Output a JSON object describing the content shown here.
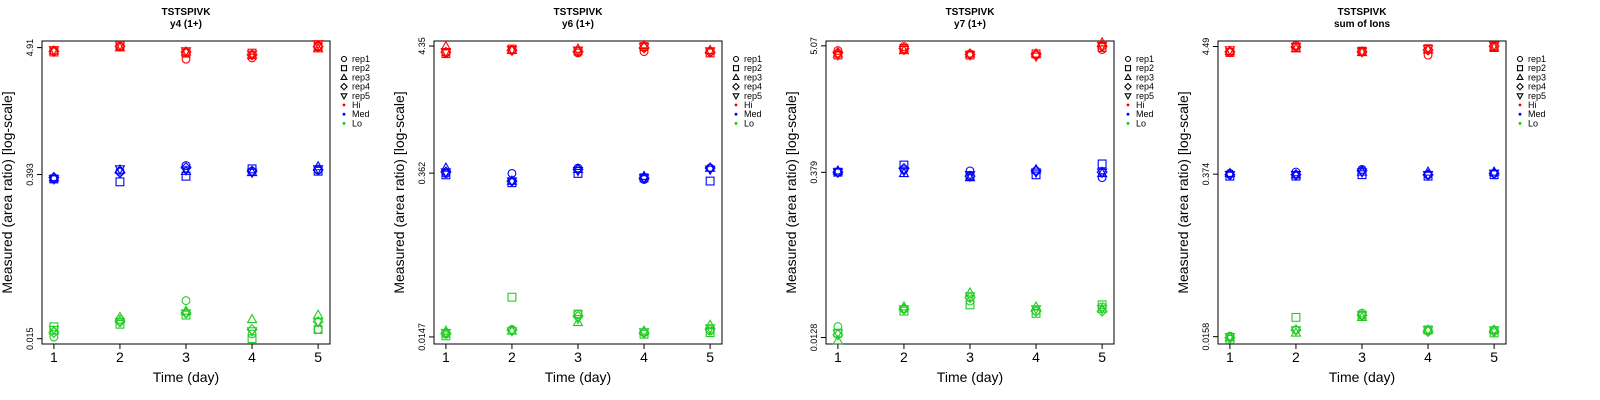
{
  "chart_data": [
    {
      "type": "scatter",
      "title": "TSTSPIVK",
      "subtitle": "y4 (1+)",
      "xlabel": "Time (day)",
      "ylabel": "Measured (area ratio) [log-scale]",
      "yscale": "log",
      "x": [
        1,
        2,
        3,
        4,
        5
      ],
      "yticks": [
        0.015,
        0.393,
        4.91
      ],
      "ytick_labels": [
        "0.015",
        "0.393",
        "4.91"
      ],
      "ylim": [
        0.0135,
        5.6
      ],
      "grid": false,
      "legend_position": "right",
      "series": [
        {
          "name": "rep1",
          "level": "Hi",
          "values": [
            4.6,
            5.0,
            3.9,
            4.0,
            5.1
          ]
        },
        {
          "name": "rep2",
          "level": "Hi",
          "values": [
            4.5,
            5.1,
            4.4,
            4.4,
            5.0
          ]
        },
        {
          "name": "rep3",
          "level": "Hi",
          "values": [
            4.6,
            4.9,
            4.5,
            4.2,
            4.8
          ]
        },
        {
          "name": "rep4",
          "level": "Hi",
          "values": [
            4.55,
            5.05,
            4.5,
            4.25,
            5.0
          ]
        },
        {
          "name": "rep5",
          "level": "Hi",
          "values": [
            4.7,
            5.2,
            4.6,
            4.3,
            5.3
          ]
        },
        {
          "name": "rep1",
          "level": "Med",
          "values": [
            0.36,
            0.42,
            0.47,
            0.42,
            0.43
          ]
        },
        {
          "name": "rep2",
          "level": "Med",
          "values": [
            0.36,
            0.34,
            0.38,
            0.44,
            0.42
          ]
        },
        {
          "name": "rep3",
          "level": "Med",
          "values": [
            0.37,
            0.43,
            0.42,
            0.41,
            0.46
          ]
        },
        {
          "name": "rep4",
          "level": "Med",
          "values": [
            0.37,
            0.41,
            0.45,
            0.42,
            0.43
          ]
        },
        {
          "name": "rep5",
          "level": "Med",
          "values": [
            0.36,
            0.44,
            0.43,
            0.41,
            0.44
          ]
        },
        {
          "name": "rep1",
          "level": "Lo",
          "values": [
            0.0155,
            0.022,
            0.032,
            0.0165,
            0.018
          ]
        },
        {
          "name": "rep2",
          "level": "Lo",
          "values": [
            0.019,
            0.02,
            0.024,
            0.015,
            0.018
          ]
        },
        {
          "name": "rep3",
          "level": "Lo",
          "values": [
            0.0175,
            0.023,
            0.026,
            0.022,
            0.024
          ]
        },
        {
          "name": "rep4",
          "level": "Lo",
          "values": [
            0.017,
            0.021,
            0.025,
            0.018,
            0.021
          ]
        },
        {
          "name": "rep5",
          "level": "Lo",
          "values": [
            0.018,
            0.021,
            0.025,
            0.0175,
            0.021
          ]
        }
      ]
    },
    {
      "type": "scatter",
      "title": "TSTSPIVK",
      "subtitle": "y6 (1+)",
      "xlabel": "Time (day)",
      "ylabel": "Measured (area ratio) [log-scale]",
      "yscale": "log",
      "x": [
        1,
        2,
        3,
        4,
        5
      ],
      "yticks": [
        0.0147,
        0.362,
        4.35
      ],
      "ytick_labels": [
        "0.0147",
        "0.362",
        "4.35"
      ],
      "ylim": [
        0.0128,
        4.8
      ],
      "grid": false,
      "legend_position": "right",
      "series": [
        {
          "name": "rep1",
          "level": "Hi",
          "values": [
            3.8,
            4.0,
            3.8,
            3.9,
            3.9
          ]
        },
        {
          "name": "rep2",
          "level": "Hi",
          "values": [
            3.75,
            4.1,
            3.95,
            4.3,
            3.8
          ]
        },
        {
          "name": "rep3",
          "level": "Hi",
          "values": [
            4.3,
            4.0,
            4.1,
            4.4,
            4.0
          ]
        },
        {
          "name": "rep4",
          "level": "Hi",
          "values": [
            3.85,
            4.0,
            3.9,
            4.2,
            3.85
          ]
        },
        {
          "name": "rep5",
          "level": "Hi",
          "values": [
            3.9,
            4.05,
            4.0,
            4.3,
            3.95
          ]
        },
        {
          "name": "rep1",
          "level": "Med",
          "values": [
            0.36,
            0.36,
            0.4,
            0.32,
            0.4
          ]
        },
        {
          "name": "rep2",
          "level": "Med",
          "values": [
            0.35,
            0.3,
            0.36,
            0.33,
            0.31
          ]
        },
        {
          "name": "rep3",
          "level": "Med",
          "values": [
            0.4,
            0.31,
            0.39,
            0.34,
            0.4
          ]
        },
        {
          "name": "rep4",
          "level": "Med",
          "values": [
            0.37,
            0.31,
            0.39,
            0.33,
            0.4
          ]
        },
        {
          "name": "rep5",
          "level": "Med",
          "values": [
            0.37,
            0.31,
            0.38,
            0.33,
            0.39
          ]
        },
        {
          "name": "rep1",
          "level": "Lo",
          "values": [
            0.0155,
            0.017,
            0.023,
            0.016,
            0.0165
          ]
        },
        {
          "name": "rep2",
          "level": "Lo",
          "values": [
            0.015,
            0.032,
            0.023,
            0.0155,
            0.016
          ]
        },
        {
          "name": "rep3",
          "level": "Lo",
          "values": [
            0.0165,
            0.0165,
            0.0195,
            0.0165,
            0.0185
          ]
        },
        {
          "name": "rep4",
          "level": "Lo",
          "values": [
            0.0158,
            0.0168,
            0.022,
            0.016,
            0.017
          ]
        },
        {
          "name": "rep5",
          "level": "Lo",
          "values": [
            0.016,
            0.0165,
            0.021,
            0.0162,
            0.0175
          ]
        }
      ]
    },
    {
      "type": "scatter",
      "title": "TSTSPIVK",
      "subtitle": "y7 (1+)",
      "xlabel": "Time (day)",
      "ylabel": "Measured (area ratio) [log-scale]",
      "yscale": "log",
      "x": [
        1,
        2,
        3,
        4,
        5
      ],
      "yticks": [
        0.0128,
        0.379,
        5.07
      ],
      "ytick_labels": [
        "0.0128",
        "0.379",
        "5.07"
      ],
      "ylim": [
        0.0112,
        5.6
      ],
      "grid": false,
      "legend_position": "right",
      "series": [
        {
          "name": "rep1",
          "level": "Hi",
          "values": [
            4.6,
            5.0,
            4.3,
            4.2,
            4.7
          ]
        },
        {
          "name": "rep2",
          "level": "Hi",
          "values": [
            4.2,
            4.8,
            4.2,
            4.3,
            4.9
          ]
        },
        {
          "name": "rep3",
          "level": "Hi",
          "values": [
            4.3,
            4.6,
            4.3,
            4.3,
            5.4
          ]
        },
        {
          "name": "rep4",
          "level": "Hi",
          "values": [
            4.4,
            4.8,
            4.25,
            4.25,
            5.0
          ]
        },
        {
          "name": "rep5",
          "level": "Hi",
          "values": [
            4.2,
            4.7,
            4.2,
            4.1,
            5.1
          ]
        },
        {
          "name": "rep1",
          "level": "Med",
          "values": [
            0.38,
            0.4,
            0.39,
            0.39,
            0.34
          ]
        },
        {
          "name": "rep2",
          "level": "Med",
          "values": [
            0.38,
            0.44,
            0.35,
            0.36,
            0.45
          ]
        },
        {
          "name": "rep3",
          "level": "Med",
          "values": [
            0.39,
            0.37,
            0.34,
            0.4,
            0.37
          ]
        },
        {
          "name": "rep4",
          "level": "Med",
          "values": [
            0.38,
            0.41,
            0.35,
            0.39,
            0.38
          ]
        },
        {
          "name": "rep5",
          "level": "Med",
          "values": [
            0.38,
            0.39,
            0.36,
            0.38,
            0.38
          ]
        },
        {
          "name": "rep1",
          "level": "Lo",
          "values": [
            0.016,
            0.023,
            0.027,
            0.022,
            0.024
          ]
        },
        {
          "name": "rep2",
          "level": "Lo",
          "values": [
            0.014,
            0.022,
            0.025,
            0.021,
            0.025
          ]
        },
        {
          "name": "rep3",
          "level": "Lo",
          "values": [
            0.012,
            0.024,
            0.032,
            0.024,
            0.023
          ]
        },
        {
          "name": "rep4",
          "level": "Lo",
          "values": [
            0.0135,
            0.023,
            0.029,
            0.022,
            0.022
          ]
        },
        {
          "name": "rep5",
          "level": "Lo",
          "values": [
            0.014,
            0.023,
            0.03,
            0.023,
            0.023
          ]
        }
      ]
    },
    {
      "type": "scatter",
      "title": "TSTSPIVK",
      "subtitle": "sum of Ions",
      "xlabel": "Time (day)",
      "ylabel": "Measured (area ratio) [log-scale]",
      "yscale": "log",
      "x": [
        1,
        2,
        3,
        4,
        5
      ],
      "yticks": [
        0.0158,
        0.374,
        4.49
      ],
      "ytick_labels": [
        "0.0158",
        "0.374",
        "4.49"
      ],
      "ylim": [
        0.0137,
        5.0
      ],
      "grid": false,
      "legend_position": "right",
      "series": [
        {
          "name": "rep1",
          "level": "Hi",
          "values": [
            4.0,
            4.6,
            4.1,
            3.8,
            4.5
          ]
        },
        {
          "name": "rep2",
          "level": "Hi",
          "values": [
            4.0,
            4.4,
            4.1,
            4.3,
            4.4
          ]
        },
        {
          "name": "rep3",
          "level": "Hi",
          "values": [
            4.1,
            4.3,
            4.0,
            4.2,
            4.4
          ]
        },
        {
          "name": "rep4",
          "level": "Hi",
          "values": [
            4.05,
            4.45,
            4.05,
            4.2,
            4.5
          ]
        },
        {
          "name": "rep5",
          "level": "Hi",
          "values": [
            4.2,
            4.5,
            4.1,
            4.3,
            4.6
          ]
        },
        {
          "name": "rep1",
          "level": "Med",
          "values": [
            0.38,
            0.39,
            0.41,
            0.37,
            0.38
          ]
        },
        {
          "name": "rep2",
          "level": "Med",
          "values": [
            0.36,
            0.36,
            0.37,
            0.36,
            0.37
          ]
        },
        {
          "name": "rep3",
          "level": "Med",
          "values": [
            0.38,
            0.37,
            0.39,
            0.39,
            0.39
          ]
        },
        {
          "name": "rep4",
          "level": "Med",
          "values": [
            0.37,
            0.37,
            0.4,
            0.37,
            0.38
          ]
        },
        {
          "name": "rep5",
          "level": "Med",
          "values": [
            0.37,
            0.37,
            0.39,
            0.37,
            0.38
          ]
        },
        {
          "name": "rep1",
          "level": "Lo",
          "values": [
            0.016,
            0.018,
            0.025,
            0.018,
            0.018
          ]
        },
        {
          "name": "rep2",
          "level": "Lo",
          "values": [
            0.015,
            0.023,
            0.024,
            0.018,
            0.017
          ]
        },
        {
          "name": "rep3",
          "level": "Lo",
          "values": [
            0.0155,
            0.017,
            0.023,
            0.018,
            0.018
          ]
        },
        {
          "name": "rep4",
          "level": "Lo",
          "values": [
            0.0155,
            0.018,
            0.024,
            0.0175,
            0.0175
          ]
        },
        {
          "name": "rep5",
          "level": "Lo",
          "values": [
            0.0158,
            0.018,
            0.024,
            0.018,
            0.018
          ]
        }
      ]
    }
  ],
  "legend": {
    "entries": [
      {
        "label": "rep1",
        "shape": "circle",
        "color": "#000000"
      },
      {
        "label": "rep2",
        "shape": "square",
        "color": "#000000"
      },
      {
        "label": "rep3",
        "shape": "triangle-up",
        "color": "#000000"
      },
      {
        "label": "rep4",
        "shape": "diamond",
        "color": "#000000"
      },
      {
        "label": "rep5",
        "shape": "triangle-down",
        "color": "#000000"
      },
      {
        "label": "Hi",
        "shape": "dot",
        "color": "#ff0000"
      },
      {
        "label": "Med",
        "shape": "dot",
        "color": "#0000ff"
      },
      {
        "label": "Lo",
        "shape": "dot",
        "color": "#00cc00"
      }
    ]
  },
  "colors": {
    "Hi": "#ff0000",
    "Med": "#0000ff",
    "Lo": "#22cc22",
    "axis": "#000000"
  },
  "shapes": {
    "rep1": "circle",
    "rep2": "square",
    "rep3": "triangle-up",
    "rep4": "diamond",
    "rep5": "triangle-down"
  }
}
